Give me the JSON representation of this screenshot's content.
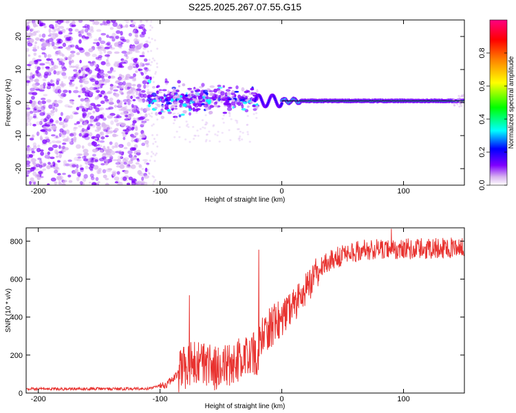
{
  "title": "S225.2025.267.07.55.G15",
  "chart_data": [
    {
      "type": "heatmap",
      "name": "spectrogram",
      "xlabel": "Height of straight line (km)",
      "ylabel": "Frequency (Hz)",
      "xlim": [
        -210,
        150
      ],
      "ylim": [
        -25,
        25
      ],
      "xticks": [
        -200,
        -100,
        0,
        100
      ],
      "yticks": [
        -20,
        -10,
        0,
        10,
        20
      ],
      "reference_line_y": 0.5,
      "regions": [
        {
          "x": [
            -210,
            -110
          ],
          "description": "broad noise across all frequencies"
        },
        {
          "x": [
            -110,
            -20
          ],
          "description": "scattered clusters near 0 Hz"
        },
        {
          "x": [
            -20,
            0
          ],
          "description": "oscillating track"
        },
        {
          "x": [
            0,
            150
          ],
          "description": "coherent tone near 0.5 Hz"
        }
      ]
    },
    {
      "type": "colorbar",
      "name": "amplitude-scale",
      "label": "Normalized spectral amplitude",
      "ticks": [
        "0.0",
        "0.2",
        "0.4",
        "0.6",
        "0.8"
      ],
      "range": [
        0,
        1
      ],
      "colors": [
        "#ffffff",
        "#d8b3f0",
        "#8000ff",
        "#0000ff",
        "#00ffff",
        "#00ff00",
        "#ffff00",
        "#ff8000",
        "#ff0000",
        "#ff0080"
      ]
    },
    {
      "type": "line",
      "name": "snr",
      "xlabel": "Height of straight line (km)",
      "ylabel": "SNR (10 * v/v)",
      "xlim": [
        -210,
        150
      ],
      "ylim": [
        0,
        870
      ],
      "xticks": [
        -200,
        -100,
        0,
        100
      ],
      "yticks": [
        0,
        200,
        400,
        600,
        800
      ],
      "color": "#e8322f",
      "trend": [
        {
          "x": -210,
          "y": 22
        },
        {
          "x": -110,
          "y": 22
        },
        {
          "x": -95,
          "y": 45
        },
        {
          "x": -82,
          "y": 120
        },
        {
          "x": -75,
          "y": 160
        },
        {
          "x": -55,
          "y": 130
        },
        {
          "x": -35,
          "y": 170
        },
        {
          "x": -20,
          "y": 210
        },
        {
          "x": -15,
          "y": 320
        },
        {
          "x": 0,
          "y": 390
        },
        {
          "x": 15,
          "y": 500
        },
        {
          "x": 25,
          "y": 600
        },
        {
          "x": 35,
          "y": 680
        },
        {
          "x": 50,
          "y": 730
        },
        {
          "x": 70,
          "y": 755
        },
        {
          "x": 150,
          "y": 765
        }
      ],
      "spikes": [
        {
          "x": -76,
          "y": 515
        },
        {
          "x": -19,
          "y": 755
        },
        {
          "x": 90,
          "y": 865
        }
      ]
    }
  ]
}
